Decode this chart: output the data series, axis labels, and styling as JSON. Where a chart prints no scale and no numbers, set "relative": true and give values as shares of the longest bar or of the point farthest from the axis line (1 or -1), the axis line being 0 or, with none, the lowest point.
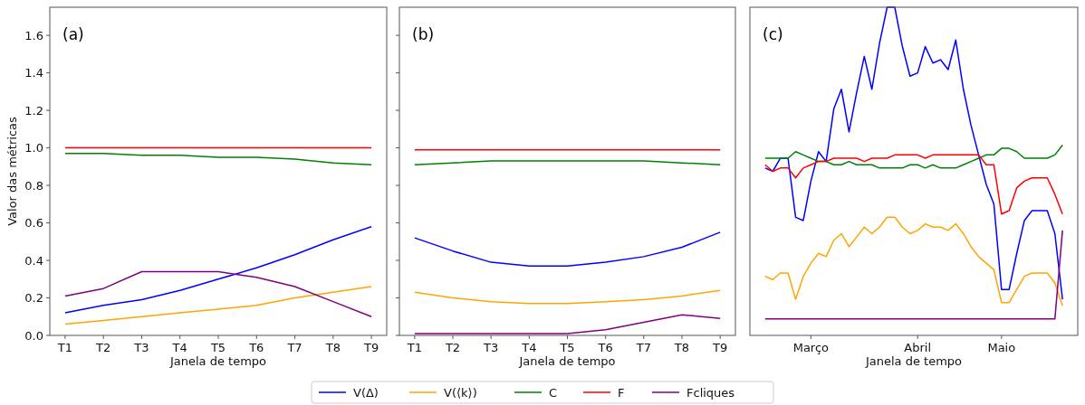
{
  "chart_data": [
    {
      "type": "line",
      "annotations": [
        "(a)"
      ],
      "xlabel": "Janela de tempo",
      "ylabel": "Valor das métricas",
      "categories": [
        "T1",
        "T2",
        "T3",
        "T4",
        "T5",
        "T6",
        "T7",
        "T8",
        "T9"
      ],
      "ylim": [
        0,
        1.75
      ],
      "yticks": [
        {
          "value": 0,
          "label": "0.0"
        },
        0.2,
        0.4,
        0.6,
        0.8,
        {
          "value": 1,
          "label": "1.0"
        },
        1.2,
        1.4,
        1.6
      ],
      "legend": "bottom",
      "line_style": "solid",
      "series": [
        {
          "name": "V(Δ)",
          "color": "#0000ff",
          "values": [
            0.12,
            0.16,
            0.19,
            0.24,
            0.3,
            0.36,
            0.43,
            0.51,
            0.58
          ]
        },
        {
          "name": "V(⟨k⟩)",
          "color": "#ffa500",
          "values": [
            0.06,
            0.08,
            0.1,
            0.12,
            0.14,
            0.16,
            0.2,
            0.23,
            0.26
          ]
        },
        {
          "name": "C",
          "color": "#008000",
          "values": [
            0.97,
            0.97,
            0.96,
            0.96,
            0.95,
            0.95,
            0.94,
            0.92,
            0.91
          ]
        },
        {
          "name": "F",
          "color": "#ff0000",
          "values": [
            1.0,
            1.0,
            1.0,
            1.0,
            1.0,
            1.0,
            1.0,
            1.0,
            1.0
          ]
        },
        {
          "name": "Fcliques",
          "color": "#800080",
          "values": [
            0.21,
            0.25,
            0.34,
            0.34,
            0.34,
            0.31,
            0.26,
            0.18,
            0.1
          ]
        }
      ]
    },
    {
      "type": "line",
      "annotations": [
        "(b)"
      ],
      "xlabel": "Janela de tempo",
      "categories": [
        "T1",
        "T2",
        "T3",
        "T4",
        "T5",
        "T6",
        "T7",
        "T8",
        "T9"
      ],
      "ylim": [
        0,
        1.75
      ],
      "yticks": [
        0,
        0.2,
        0.4,
        0.6,
        0.8,
        1,
        1.2,
        1.4,
        1.6
      ],
      "tick_labels": "x",
      "line_style": "solid",
      "series": [
        {
          "color": "#0000ff",
          "values": [
            0.52,
            0.45,
            0.39,
            0.37,
            0.37,
            0.39,
            0.42,
            0.47,
            0.55
          ]
        },
        {
          "color": "#ffa500",
          "values": [
            0.23,
            0.2,
            0.18,
            0.17,
            0.17,
            0.18,
            0.19,
            0.21,
            0.24
          ]
        },
        {
          "color": "#008000",
          "values": [
            0.91,
            0.92,
            0.93,
            0.93,
            0.93,
            0.93,
            0.93,
            0.92,
            0.91
          ]
        },
        {
          "color": "#ff0000",
          "values": [
            0.99,
            0.99,
            0.99,
            0.99,
            0.99,
            0.99,
            0.99,
            0.99,
            0.99
          ]
        },
        {
          "color": "#800080",
          "values": [
            0.01,
            0.01,
            0.01,
            0.01,
            0.01,
            0.03,
            0.07,
            0.11,
            0.09
          ]
        }
      ]
    },
    {
      "type": "line",
      "annotations": [
        "(c)"
      ],
      "xlabel": "Janela de tempo",
      "relative": true,
      "line_style": "solid",
      "categories": [
        null,
        null,
        null,
        null,
        null,
        null,
        "Março",
        null,
        null,
        null,
        null,
        null,
        null,
        null,
        null,
        null,
        null,
        null,
        null,
        null,
        "Abril",
        null,
        null,
        null,
        null,
        null,
        null,
        null,
        null,
        null,
        null,
        "Maio",
        null,
        null,
        null,
        null,
        null,
        null,
        null,
        null
      ],
      "series": [
        {
          "color": "#0000ff",
          "values": [
            0.51,
            0.5,
            0.54,
            0.54,
            0.36,
            0.35,
            0.47,
            0.56,
            0.53,
            0.69,
            0.75,
            0.62,
            0.74,
            0.85,
            0.75,
            0.89,
            1.0,
            1.0,
            0.88,
            0.79,
            0.8,
            0.88,
            0.83,
            0.84,
            0.81,
            0.9,
            0.75,
            0.64,
            0.55,
            0.46,
            0.4,
            0.14,
            0.14,
            0.25,
            0.35,
            0.38,
            0.38,
            0.38,
            0.31,
            0.11
          ]
        },
        {
          "color": "#ffa500",
          "values": [
            0.18,
            0.17,
            0.19,
            0.19,
            0.11,
            0.18,
            0.22,
            0.25,
            0.24,
            0.29,
            0.31,
            0.27,
            0.3,
            0.33,
            0.31,
            0.33,
            0.36,
            0.36,
            0.33,
            0.31,
            0.32,
            0.34,
            0.33,
            0.33,
            0.32,
            0.34,
            0.31,
            0.27,
            0.24,
            0.22,
            0.2,
            0.1,
            0.1,
            0.14,
            0.18,
            0.19,
            0.19,
            0.19,
            0.16,
            0.09
          ]
        },
        {
          "color": "#008000",
          "values": [
            0.54,
            0.54,
            0.54,
            0.54,
            0.56,
            0.55,
            0.54,
            0.53,
            0.53,
            0.52,
            0.52,
            0.53,
            0.52,
            0.52,
            0.52,
            0.51,
            0.51,
            0.51,
            0.51,
            0.52,
            0.52,
            0.51,
            0.52,
            0.51,
            0.51,
            0.51,
            0.52,
            0.53,
            0.54,
            0.55,
            0.55,
            0.57,
            0.57,
            0.56,
            0.54,
            0.54,
            0.54,
            0.54,
            0.55,
            0.58
          ]
        },
        {
          "color": "#ff0000",
          "values": [
            0.52,
            0.5,
            0.51,
            0.51,
            0.48,
            0.51,
            0.52,
            0.53,
            0.53,
            0.54,
            0.54,
            0.54,
            0.54,
            0.53,
            0.54,
            0.54,
            0.54,
            0.55,
            0.55,
            0.55,
            0.55,
            0.54,
            0.55,
            0.55,
            0.55,
            0.55,
            0.55,
            0.55,
            0.55,
            0.52,
            0.52,
            0.37,
            0.38,
            0.45,
            0.47,
            0.48,
            0.48,
            0.48,
            0.43,
            0.37
          ]
        },
        {
          "color": "#800080",
          "values": [
            0.05,
            0.05,
            0.05,
            0.05,
            0.05,
            0.05,
            0.05,
            0.05,
            0.05,
            0.05,
            0.05,
            0.05,
            0.05,
            0.05,
            0.05,
            0.05,
            0.05,
            0.05,
            0.05,
            0.05,
            0.05,
            0.05,
            0.05,
            0.05,
            0.05,
            0.05,
            0.05,
            0.05,
            0.05,
            0.05,
            0.05,
            0.05,
            0.05,
            0.05,
            0.05,
            0.05,
            0.05,
            0.05,
            0.05,
            0.32
          ]
        }
      ]
    }
  ]
}
